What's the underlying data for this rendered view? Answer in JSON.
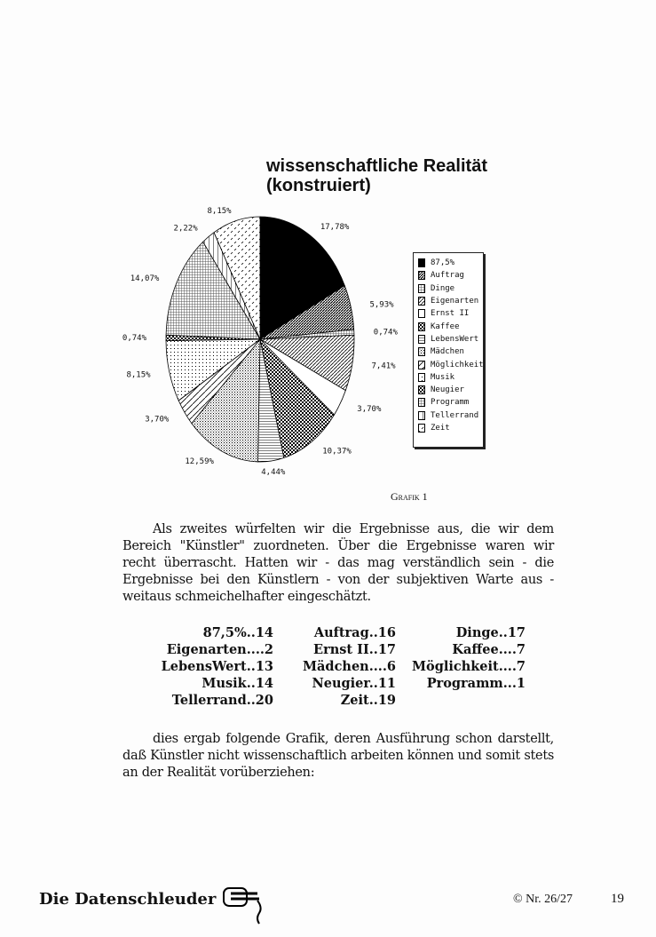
{
  "chart_data": {
    "type": "pie",
    "title": "wissenschaftliche Realität",
    "subtitle": "(konstruiert)",
    "slices": [
      {
        "name": "87,5%",
        "value": 17.78,
        "label": "17,78%",
        "pattern": "solid"
      },
      {
        "name": "Auftrag",
        "value": 5.93,
        "label": "5,93%",
        "pattern": "diag-dense"
      },
      {
        "name": "Dinge",
        "value": 0.74,
        "label": "0,74%",
        "pattern": "grid"
      },
      {
        "name": "Eigenarten",
        "value": 7.41,
        "label": "7,41%",
        "pattern": "diag"
      },
      {
        "name": "Ernst II",
        "value": 3.7,
        "label": "3,70%",
        "pattern": "white"
      },
      {
        "name": "Kaffee",
        "value": 10.37,
        "label": "10,37%",
        "pattern": "checker"
      },
      {
        "name": "LebensWert",
        "value": 4.44,
        "label": "4,44%",
        "pattern": "hlines"
      },
      {
        "name": "Mädchen",
        "value": 12.59,
        "label": "12,59%",
        "pattern": "dots-dense"
      },
      {
        "name": "Möglichkeit",
        "value": 3.7,
        "label": "3,70%",
        "pattern": "diag-sparse"
      },
      {
        "name": "Musik",
        "value": 8.15,
        "label": "8,15%",
        "pattern": "dots"
      },
      {
        "name": "Neugier",
        "value": 0.74,
        "label": "0,74%",
        "pattern": "checker"
      },
      {
        "name": "Programm",
        "value": 14.07,
        "label": "14,07%",
        "pattern": "grid"
      },
      {
        "name": "Tellerrand",
        "value": 2.22,
        "label": "2,22%",
        "pattern": "vlines"
      },
      {
        "name": "Zeit",
        "value": 8.15,
        "label": "8,15%",
        "pattern": "zigzag"
      }
    ],
    "legend_position": "right"
  },
  "caption": "Grafik 1",
  "paragraph1": "Als zweites würfelten wir die Ergebnisse aus, die wir dem Bereich \"Künstler\" zuordneten. Über die Ergebnisse waren wir recht überrascht. Hatten wir - das mag verständlich sein - die Ergebnisse bei den Künstlern - von der subjektiven Warte aus - weitaus schmeichelhafter eingeschätzt.",
  "counts": [
    [
      "87,5%..14",
      "Auftrag..16",
      "Dinge..17"
    ],
    [
      "Eigenarten....2",
      "Ernst II..17",
      "Kaffee....7"
    ],
    [
      "LebensWert..13",
      "Mädchen....6",
      "Möglichkeit....7"
    ],
    [
      "Musik..14",
      "Neugier..11",
      "Programm...1"
    ],
    [
      "Tellerrand..20",
      "Zeit..19",
      ""
    ]
  ],
  "paragraph2": "dies ergab folgende Grafik, deren Ausführung schon darstellt, daß Künstler nicht wissenschaftlich arbeiten können und somit stets an der Realität vorüberziehen:",
  "footer": {
    "logo": "Die Datenschleuder",
    "issue": "© Nr. 26/27",
    "page": "19"
  }
}
